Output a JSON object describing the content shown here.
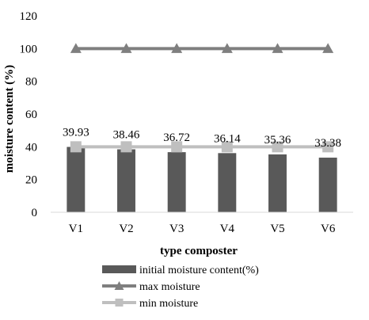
{
  "chart_data": {
    "type": "bar",
    "categories": [
      "V1",
      "V2",
      "V3",
      "V4",
      "V5",
      "V6"
    ],
    "series": [
      {
        "name": "initial moisture content(%)",
        "type": "bar",
        "values": [
          39.93,
          38.46,
          36.72,
          36.14,
          35.36,
          33.38
        ],
        "color": "#595959"
      },
      {
        "name": "max moisture",
        "type": "line",
        "marker": "triangle",
        "values": [
          100,
          100,
          100,
          100,
          100,
          100
        ],
        "color": "#7f7f7f"
      },
      {
        "name": "min moisture",
        "type": "line",
        "marker": "square",
        "values": [
          40,
          40,
          40,
          40,
          40,
          40
        ],
        "color": "#bfbfbf"
      }
    ],
    "data_labels": [
      "39.93",
      "38.46",
      "36.72",
      "36.14",
      "35.36",
      "33.38"
    ],
    "yticks": [
      "0",
      "20",
      "40",
      "60",
      "80",
      "100",
      "120"
    ],
    "xlabel": "type composter",
    "ylabel": "moisture  content (%)",
    "ylim": [
      0,
      120
    ],
    "grid": false,
    "legend_position": "bottom"
  }
}
